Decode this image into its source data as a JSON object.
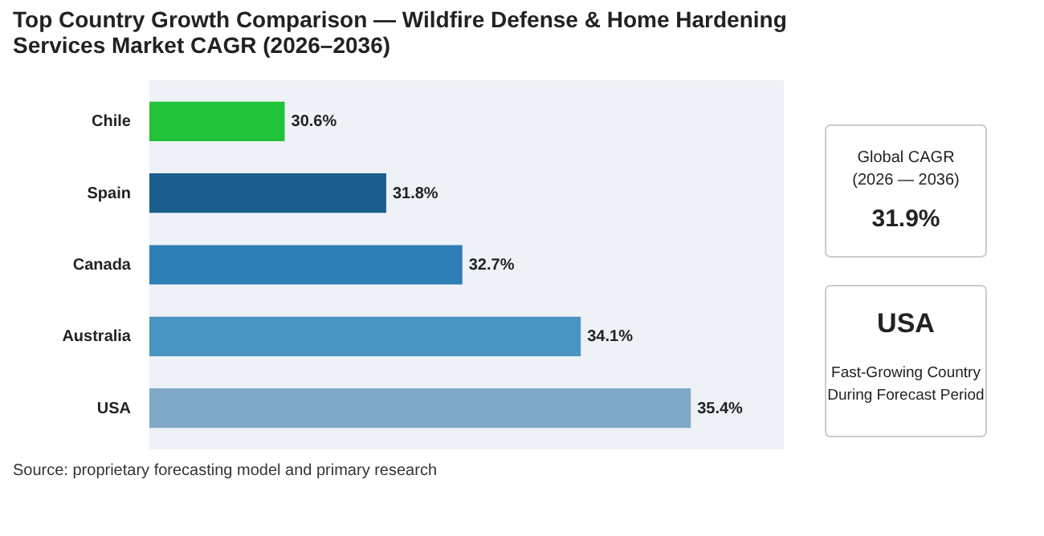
{
  "chart_data": {
    "type": "bar",
    "orientation": "horizontal",
    "title": "Top Country Growth Comparison — Wildfire Defense & Home Hardening Services Market CAGR (2026–2036)",
    "categories": [
      "Chile",
      "Spain",
      "Canada",
      "Australia",
      "USA"
    ],
    "values": [
      30.6,
      31.8,
      32.7,
      34.1,
      35.4
    ],
    "colors": [
      "#22c33a",
      "#1a5e8e",
      "#2e7fb5",
      "#4a94c4",
      "#7fa9c4"
    ],
    "xlim": [
      29,
      36.5
    ],
    "data_labels": true,
    "value_labels": [
      "30.6%",
      "31.8%",
      "32.7%",
      "34.1%",
      "35.4%"
    ],
    "annotations": [
      "Global CAGR",
      "(2026 — 2036)",
      "31.9%",
      "USA",
      "Fast-Growing Country",
      "During Forecast Period",
      "Source: proprietary forecasting model and primary research"
    ]
  }
}
